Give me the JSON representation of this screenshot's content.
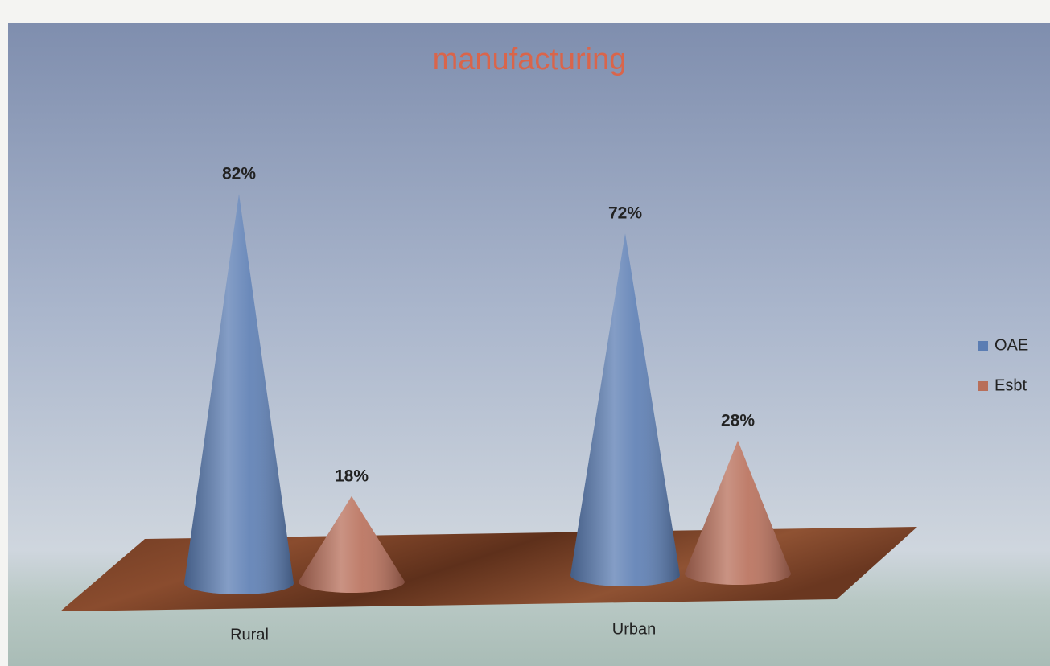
{
  "chart_data": {
    "type": "cone",
    "title": "manufacturing",
    "categories": [
      "Rural",
      "Urban"
    ],
    "series": [
      {
        "name": "OAE",
        "color": "#5b7db3",
        "values": [
          82,
          72
        ],
        "value_labels": [
          "82%",
          "72%"
        ]
      },
      {
        "name": "Esbt",
        "color": "#b86f5a",
        "values": [
          18,
          28
        ],
        "value_labels": [
          "18%",
          "28%"
        ]
      }
    ],
    "title_color": "#d9654b",
    "legend": "right"
  }
}
